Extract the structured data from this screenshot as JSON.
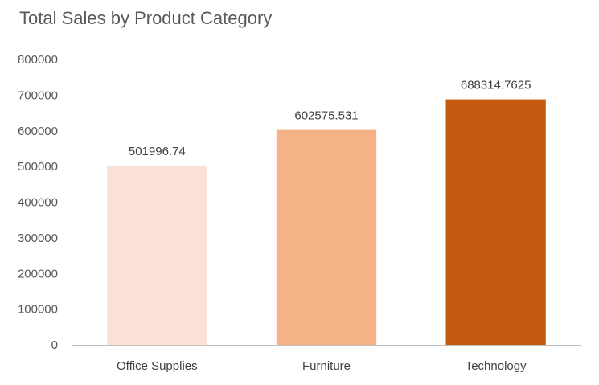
{
  "chart_data": {
    "type": "bar",
    "title": "Total Sales by Product Category",
    "categories": [
      "Office Supplies",
      "Furniture",
      "Technology"
    ],
    "values": [
      501996.74,
      602575.531,
      688314.7625
    ],
    "data_labels": [
      "501996.74",
      "602575.531",
      "688314.7625"
    ],
    "bar_colors": [
      "#FAE3D6",
      "#F4B286",
      "#C55A11"
    ],
    "ylim": [
      0,
      800000
    ],
    "yticks": [
      0,
      100000,
      200000,
      300000,
      400000,
      500000,
      600000,
      700000,
      800000
    ],
    "ytick_labels": [
      "0",
      "100000",
      "200000",
      "300000",
      "400000",
      "500000",
      "600000",
      "700000",
      "800000"
    ],
    "xlabel": "",
    "ylabel": "",
    "grid": false,
    "legend": "none"
  }
}
